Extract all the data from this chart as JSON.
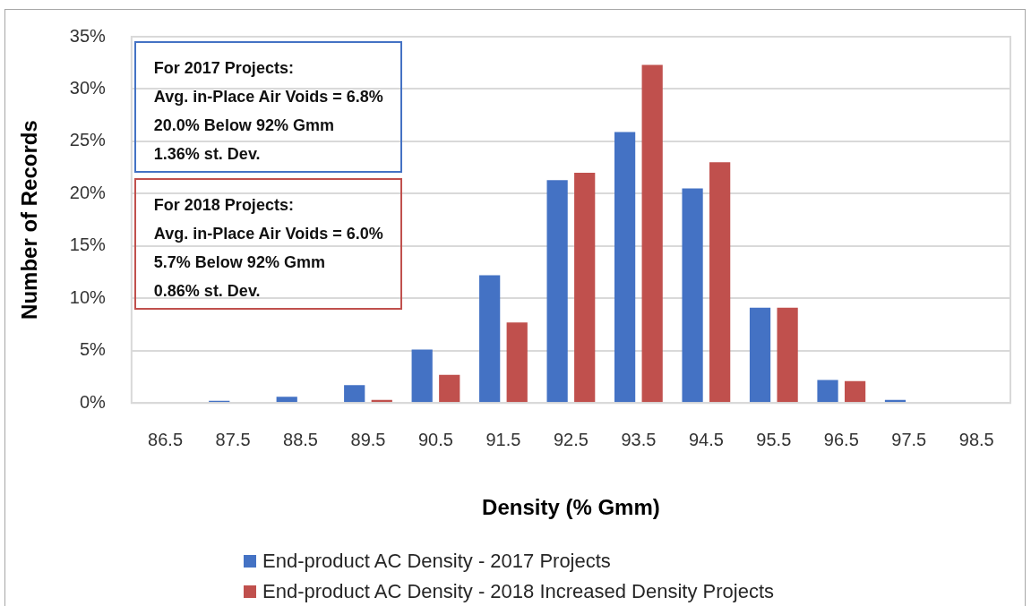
{
  "chart_data": {
    "type": "bar",
    "xlabel": "Density (% Gmm)",
    "ylabel": "Number of Records",
    "categories": [
      "86.5",
      "87.5",
      "88.5",
      "89.5",
      "90.5",
      "91.5",
      "92.5",
      "93.5",
      "94.5",
      "95.5",
      "96.5",
      "97.5",
      "98.5"
    ],
    "series": [
      {
        "name": "End-product AC Density - 2017 Projects",
        "color": "#4472c4",
        "values": [
          0,
          0.2,
          0.6,
          1.7,
          5.1,
          12.2,
          21.3,
          25.9,
          20.5,
          9.1,
          2.2,
          0.3,
          0
        ]
      },
      {
        "name": "End-product AC Density - 2018 Increased Density Projects",
        "color": "#c0504d",
        "values": [
          0,
          0,
          0,
          0.3,
          2.7,
          7.7,
          22.0,
          32.3,
          23.0,
          9.1,
          2.1,
          0,
          0
        ]
      }
    ],
    "ylim": [
      0,
      35
    ],
    "yticks": [
      {
        "value": 0,
        "label": "0%"
      },
      {
        "value": 5,
        "label": "5%"
      },
      {
        "value": 10,
        "label": "10%"
      },
      {
        "value": 15,
        "label": "15%"
      },
      {
        "value": 20,
        "label": "20%"
      },
      {
        "value": 25,
        "label": "25%"
      },
      {
        "value": 30,
        "label": "30%"
      },
      {
        "value": 35,
        "label": "35%"
      }
    ],
    "grid": "y",
    "legend": "bottom",
    "annotations": [
      "For 2017 Projects:\nAvg. in-Place Air Voids = 6.8%\n20.0% Below 92% Gmm\n1.36% st. Dev.",
      "For 2018 Projects:\nAvg. in-Place Air Voids = 6.0%\n5.7% Below 92% Gmm\n0.86% st. Dev."
    ]
  }
}
